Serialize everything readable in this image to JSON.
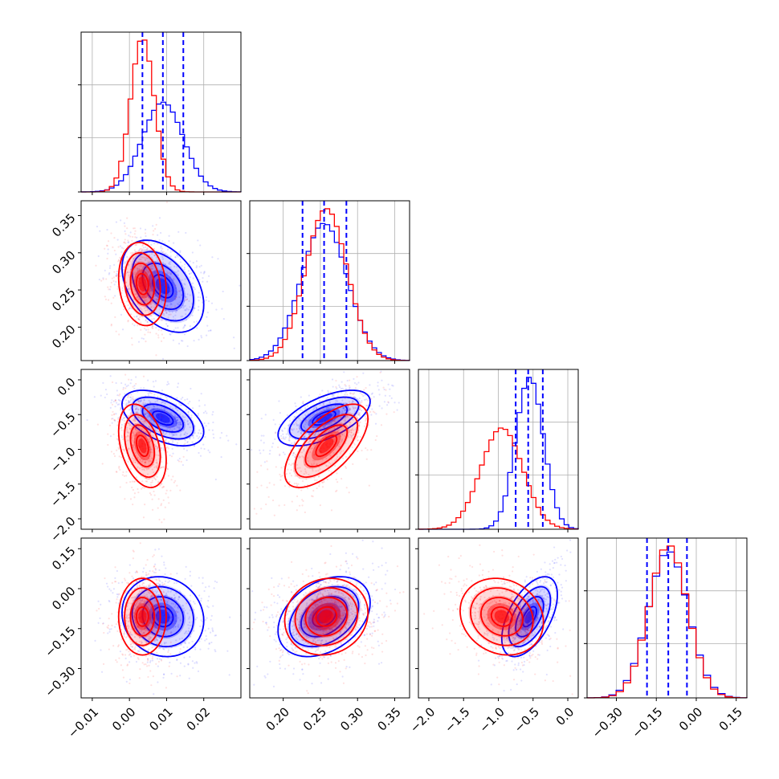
{
  "chart_data": {
    "type": "corner",
    "colors": {
      "blue": "#0000ff",
      "red": "#ff0000"
    },
    "series_names": [
      "blue",
      "red"
    ],
    "params": [
      {
        "range": [
          -0.013,
          0.03
        ],
        "ticks": [
          -0.01,
          0.0,
          0.01,
          0.02
        ],
        "tick_labels": [
          "−0.01",
          "0.00",
          "0.01",
          "0.02"
        ],
        "blue": {
          "mean": 0.009,
          "sd": 0.0055
        },
        "red": {
          "mean": 0.0035,
          "sd": 0.0032
        },
        "quantiles": [
          0.0035,
          0.009,
          0.0145
        ],
        "bin_count": 34
      },
      {
        "range": [
          0.155,
          0.37
        ],
        "ticks": [
          0.2,
          0.25,
          0.3,
          0.35
        ],
        "tick_labels": [
          "0.20",
          "0.25",
          "0.30",
          "0.35"
        ],
        "blue": {
          "mean": 0.255,
          "sd": 0.031
        },
        "red": {
          "mean": 0.258,
          "sd": 0.028
        },
        "quantiles": [
          0.226,
          0.255,
          0.285
        ],
        "bin_count": 34
      },
      {
        "range": [
          -2.15,
          0.15
        ],
        "ticks": [
          -2.0,
          -1.5,
          -1.0,
          -0.5,
          0.0
        ],
        "tick_labels": [
          "−2.0",
          "−1.5",
          "−1.0",
          "−0.5",
          "0.0"
        ],
        "blue": {
          "mean": -0.55,
          "sd": 0.2
        },
        "red": {
          "mean": -0.95,
          "sd": 0.3
        },
        "quantiles": [
          -0.75,
          -0.57,
          -0.36
        ],
        "bin_count": 34
      },
      {
        "range": [
          -0.41,
          0.19
        ],
        "ticks": [
          -0.3,
          -0.15,
          0.0,
          0.15
        ],
        "tick_labels": [
          "−0.30",
          "−0.15",
          "0.00",
          "0.15"
        ],
        "blue": {
          "mean": -0.105,
          "sd": 0.075
        },
        "red": {
          "mean": -0.105,
          "sd": 0.072
        },
        "quantiles": [
          -0.185,
          -0.105,
          -0.035
        ],
        "bin_count": 22
      }
    ],
    "correlations": {
      "blue": {
        "1_0": -0.4,
        "2_0": -0.5,
        "2_1": 0.6,
        "3_0": -0.1,
        "3_1": 0.35,
        "3_2": 0.55
      },
      "red": {
        "1_0": -0.15,
        "2_0": -0.35,
        "2_1": 0.65,
        "3_0": 0.0,
        "3_1": 0.1,
        "3_2": -0.15
      }
    },
    "contour_levels_sigma": [
      0.5,
      1.0,
      1.5,
      2.0
    ],
    "grid": true,
    "xlabel": "",
    "ylabel": "",
    "title": ""
  }
}
